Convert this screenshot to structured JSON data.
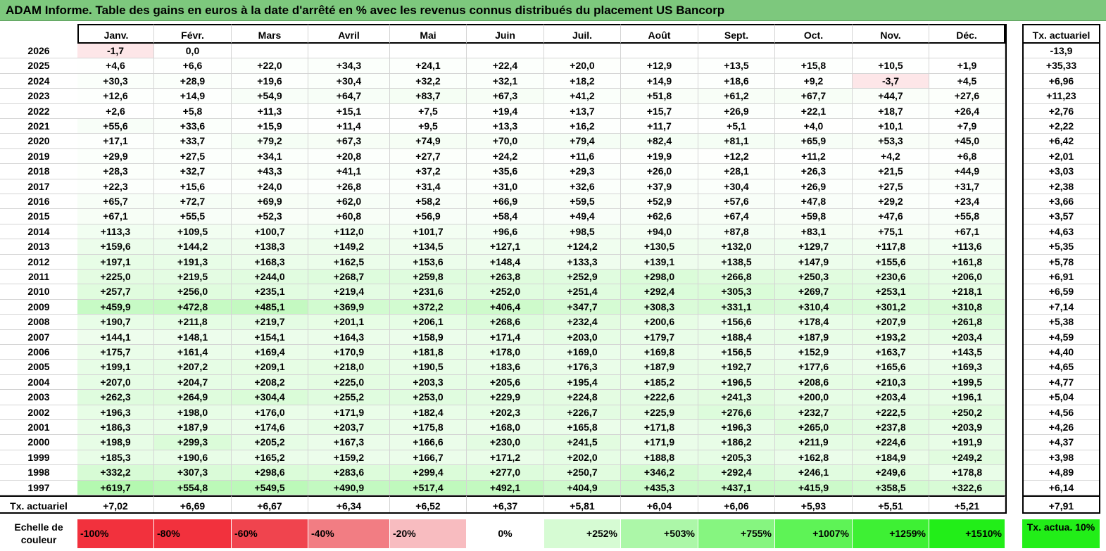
{
  "title": "ADAM Informe. Table des gains en euros à la date d'arrêté en % avec les revenus connus distribués du placement US Bancorp",
  "months": [
    "Janv.",
    "Févr.",
    "Mars",
    "Avril",
    "Mai",
    "Juin",
    "Juil.",
    "Août",
    "Sept.",
    "Oct.",
    "Nov.",
    "Déc."
  ],
  "annual_header": "Tx. actuariel",
  "rows": [
    {
      "year": "2026",
      "values": [
        "-1,7",
        "0,0",
        "",
        "",
        "",
        "",
        "",
        "",
        "",
        "",
        "",
        ""
      ],
      "annual": "-13,9"
    },
    {
      "year": "2025",
      "values": [
        "+4,6",
        "+6,6",
        "+22,0",
        "+34,3",
        "+24,1",
        "+22,4",
        "+20,0",
        "+12,9",
        "+13,5",
        "+15,8",
        "+10,5",
        "+1,9"
      ],
      "annual": "+35,33"
    },
    {
      "year": "2024",
      "values": [
        "+30,3",
        "+28,9",
        "+19,6",
        "+30,4",
        "+32,2",
        "+32,1",
        "+18,2",
        "+14,9",
        "+18,6",
        "+9,2",
        "-3,7",
        "+4,5"
      ],
      "annual": "+6,96"
    },
    {
      "year": "2023",
      "values": [
        "+12,6",
        "+14,9",
        "+54,9",
        "+64,7",
        "+83,7",
        "+67,3",
        "+41,2",
        "+51,8",
        "+61,2",
        "+67,7",
        "+44,7",
        "+27,6"
      ],
      "annual": "+11,23"
    },
    {
      "year": "2022",
      "values": [
        "+2,6",
        "+5,8",
        "+11,3",
        "+15,1",
        "+7,5",
        "+19,4",
        "+13,7",
        "+15,7",
        "+26,9",
        "+22,1",
        "+18,7",
        "+26,4"
      ],
      "annual": "+2,76"
    },
    {
      "year": "2021",
      "values": [
        "+55,6",
        "+33,6",
        "+15,9",
        "+11,4",
        "+9,5",
        "+13,3",
        "+16,2",
        "+11,7",
        "+5,1",
        "+4,0",
        "+10,1",
        "+7,9"
      ],
      "annual": "+2,22"
    },
    {
      "year": "2020",
      "values": [
        "+17,1",
        "+33,7",
        "+79,2",
        "+67,3",
        "+74,9",
        "+70,0",
        "+79,4",
        "+82,4",
        "+81,1",
        "+65,9",
        "+53,3",
        "+45,0"
      ],
      "annual": "+6,42"
    },
    {
      "year": "2019",
      "values": [
        "+29,9",
        "+27,5",
        "+34,1",
        "+20,8",
        "+27,7",
        "+24,2",
        "+11,6",
        "+19,9",
        "+12,2",
        "+11,2",
        "+4,2",
        "+6,8"
      ],
      "annual": "+2,01"
    },
    {
      "year": "2018",
      "values": [
        "+28,3",
        "+32,7",
        "+43,3",
        "+41,1",
        "+37,2",
        "+35,6",
        "+29,3",
        "+26,0",
        "+28,1",
        "+26,3",
        "+21,5",
        "+44,9"
      ],
      "annual": "+3,03"
    },
    {
      "year": "2017",
      "values": [
        "+22,3",
        "+15,6",
        "+24,0",
        "+26,8",
        "+31,4",
        "+31,0",
        "+32,6",
        "+37,9",
        "+30,4",
        "+26,9",
        "+27,5",
        "+31,7"
      ],
      "annual": "+2,38"
    },
    {
      "year": "2016",
      "values": [
        "+65,7",
        "+72,7",
        "+69,9",
        "+62,0",
        "+58,2",
        "+66,9",
        "+59,5",
        "+52,9",
        "+57,6",
        "+47,8",
        "+29,2",
        "+23,4"
      ],
      "annual": "+3,66"
    },
    {
      "year": "2015",
      "values": [
        "+67,1",
        "+55,5",
        "+52,3",
        "+60,8",
        "+56,9",
        "+58,4",
        "+49,4",
        "+62,6",
        "+67,4",
        "+59,8",
        "+47,6",
        "+55,8"
      ],
      "annual": "+3,57"
    },
    {
      "year": "2014",
      "values": [
        "+113,3",
        "+109,5",
        "+100,7",
        "+112,0",
        "+101,7",
        "+96,6",
        "+98,5",
        "+94,0",
        "+87,8",
        "+83,1",
        "+75,1",
        "+67,1"
      ],
      "annual": "+4,63"
    },
    {
      "year": "2013",
      "values": [
        "+159,6",
        "+144,2",
        "+138,3",
        "+149,2",
        "+134,5",
        "+127,1",
        "+124,2",
        "+130,5",
        "+132,0",
        "+129,7",
        "+117,8",
        "+113,6"
      ],
      "annual": "+5,35"
    },
    {
      "year": "2012",
      "values": [
        "+197,1",
        "+191,3",
        "+168,3",
        "+162,5",
        "+153,6",
        "+148,4",
        "+133,3",
        "+139,1",
        "+138,5",
        "+147,9",
        "+155,6",
        "+161,8"
      ],
      "annual": "+5,78"
    },
    {
      "year": "2011",
      "values": [
        "+225,0",
        "+219,5",
        "+244,0",
        "+268,7",
        "+259,8",
        "+263,8",
        "+252,9",
        "+298,0",
        "+266,8",
        "+250,3",
        "+230,6",
        "+206,0"
      ],
      "annual": "+6,91"
    },
    {
      "year": "2010",
      "values": [
        "+257,7",
        "+256,0",
        "+235,1",
        "+219,4",
        "+231,6",
        "+252,0",
        "+251,4",
        "+292,4",
        "+305,3",
        "+269,7",
        "+253,1",
        "+218,1"
      ],
      "annual": "+6,59"
    },
    {
      "year": "2009",
      "values": [
        "+459,9",
        "+472,8",
        "+485,1",
        "+369,9",
        "+372,2",
        "+406,4",
        "+347,7",
        "+308,3",
        "+331,1",
        "+310,4",
        "+301,2",
        "+310,8"
      ],
      "annual": "+7,14"
    },
    {
      "year": "2008",
      "values": [
        "+190,7",
        "+211,8",
        "+219,7",
        "+201,1",
        "+206,1",
        "+268,6",
        "+232,4",
        "+200,6",
        "+156,6",
        "+178,4",
        "+207,9",
        "+261,8"
      ],
      "annual": "+5,38"
    },
    {
      "year": "2007",
      "values": [
        "+144,1",
        "+148,1",
        "+154,1",
        "+164,3",
        "+158,9",
        "+171,4",
        "+203,0",
        "+179,7",
        "+188,4",
        "+187,9",
        "+193,2",
        "+203,4"
      ],
      "annual": "+4,59"
    },
    {
      "year": "2006",
      "values": [
        "+175,7",
        "+161,4",
        "+169,4",
        "+170,9",
        "+181,8",
        "+178,0",
        "+169,0",
        "+169,8",
        "+156,5",
        "+152,9",
        "+163,7",
        "+143,5"
      ],
      "annual": "+4,40"
    },
    {
      "year": "2005",
      "values": [
        "+199,1",
        "+207,2",
        "+209,1",
        "+218,0",
        "+190,5",
        "+183,6",
        "+176,3",
        "+187,9",
        "+192,7",
        "+177,6",
        "+165,6",
        "+169,3"
      ],
      "annual": "+4,65"
    },
    {
      "year": "2004",
      "values": [
        "+207,0",
        "+204,7",
        "+208,2",
        "+225,0",
        "+203,3",
        "+205,6",
        "+195,4",
        "+185,2",
        "+196,5",
        "+208,6",
        "+210,3",
        "+199,5"
      ],
      "annual": "+4,77"
    },
    {
      "year": "2003",
      "values": [
        "+262,3",
        "+264,9",
        "+304,4",
        "+255,2",
        "+253,0",
        "+229,9",
        "+224,8",
        "+222,6",
        "+241,3",
        "+200,0",
        "+203,4",
        "+196,1"
      ],
      "annual": "+5,04"
    },
    {
      "year": "2002",
      "values": [
        "+196,3",
        "+198,0",
        "+176,0",
        "+171,9",
        "+182,4",
        "+202,3",
        "+226,7",
        "+225,9",
        "+276,6",
        "+232,7",
        "+222,5",
        "+250,2"
      ],
      "annual": "+4,56"
    },
    {
      "year": "2001",
      "values": [
        "+186,3",
        "+187,9",
        "+174,6",
        "+203,7",
        "+175,8",
        "+168,0",
        "+165,8",
        "+171,8",
        "+196,3",
        "+265,0",
        "+237,8",
        "+203,9"
      ],
      "annual": "+4,26"
    },
    {
      "year": "2000",
      "values": [
        "+198,9",
        "+299,3",
        "+205,2",
        "+167,3",
        "+166,6",
        "+230,0",
        "+241,5",
        "+171,9",
        "+186,2",
        "+211,9",
        "+224,6",
        "+191,9"
      ],
      "annual": "+4,37"
    },
    {
      "year": "1999",
      "values": [
        "+185,3",
        "+190,6",
        "+165,2",
        "+159,2",
        "+166,7",
        "+171,2",
        "+202,0",
        "+188,8",
        "+205,3",
        "+162,8",
        "+184,9",
        "+249,2"
      ],
      "annual": "+3,98"
    },
    {
      "year": "1998",
      "values": [
        "+332,2",
        "+307,3",
        "+298,6",
        "+283,6",
        "+299,4",
        "+277,0",
        "+250,7",
        "+346,2",
        "+292,4",
        "+246,1",
        "+249,6",
        "+178,8"
      ],
      "annual": "+4,89"
    },
    {
      "year": "1997",
      "values": [
        "+619,7",
        "+554,8",
        "+549,5",
        "+490,9",
        "+517,4",
        "+492,1",
        "+404,9",
        "+435,3",
        "+437,1",
        "+415,9",
        "+358,5",
        "+322,6"
      ],
      "annual": "+6,14"
    }
  ],
  "summary": {
    "label": "Tx. actuariel",
    "values": [
      "+7,02",
      "+6,69",
      "+6,67",
      "+6,34",
      "+6,52",
      "+6,37",
      "+5,81",
      "+6,04",
      "+6,06",
      "+5,93",
      "+5,51",
      "+5,21"
    ],
    "annual": "+7,91"
  },
  "legend": {
    "label": "Echelle de couleur",
    "steps": [
      {
        "text": "-100%",
        "color": "#f2313d"
      },
      {
        "text": "-80%",
        "color": "#f2313d"
      },
      {
        "text": "-60%",
        "color": "#f0444e"
      },
      {
        "text": "-40%",
        "color": "#f27d83"
      },
      {
        "text": "-20%",
        "color": "#f8bcc0"
      },
      {
        "text": "0%",
        "color": "#ffffff"
      },
      {
        "text": "+252%",
        "color": "#d6fbd3"
      },
      {
        "text": "+503%",
        "color": "#acf7a8"
      },
      {
        "text": "+755%",
        "color": "#86f580"
      },
      {
        "text": "+1007%",
        "color": "#5ef356"
      },
      {
        "text": "+1259%",
        "color": "#3ef034"
      },
      {
        "text": "+1510%",
        "color": "#22ee18"
      }
    ],
    "annual_text": "Tx. actua. 10%",
    "annual_color": "#22ee18"
  },
  "colors": {
    "title_bg": "#7dc87d",
    "negative": "#fde6e8"
  }
}
